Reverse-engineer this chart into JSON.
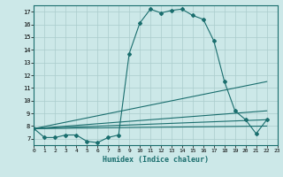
{
  "xlabel": "Humidex (Indice chaleur)",
  "bg_color": "#cce8e8",
  "grid_color": "#aacccc",
  "line_color": "#1a6e6e",
  "xlim": [
    0,
    23
  ],
  "ylim": [
    6.5,
    17.5
  ],
  "xticks": [
    0,
    1,
    2,
    3,
    4,
    5,
    6,
    7,
    8,
    9,
    10,
    11,
    12,
    13,
    14,
    15,
    16,
    17,
    18,
    19,
    20,
    21,
    22,
    23
  ],
  "yticks": [
    7,
    8,
    9,
    10,
    11,
    12,
    13,
    14,
    15,
    16,
    17
  ],
  "main_line_x": [
    0,
    1,
    2,
    3,
    4,
    5,
    6,
    7,
    8,
    9,
    10,
    11,
    12,
    13,
    14,
    15,
    16,
    17,
    18,
    19,
    20,
    21,
    22
  ],
  "main_line_y": [
    7.8,
    7.1,
    7.1,
    7.3,
    7.3,
    6.8,
    6.7,
    7.1,
    7.3,
    13.7,
    16.1,
    17.2,
    16.9,
    17.1,
    17.2,
    16.7,
    16.4,
    14.7,
    11.5,
    9.2,
    8.5,
    7.4,
    8.5
  ],
  "diag_lines": [
    {
      "x": [
        0,
        22
      ],
      "y": [
        7.8,
        11.5
      ]
    },
    {
      "x": [
        0,
        22
      ],
      "y": [
        7.8,
        9.2
      ]
    },
    {
      "x": [
        0,
        22
      ],
      "y": [
        7.8,
        8.5
      ]
    },
    {
      "x": [
        0,
        22
      ],
      "y": [
        7.8,
        8.0
      ]
    }
  ]
}
